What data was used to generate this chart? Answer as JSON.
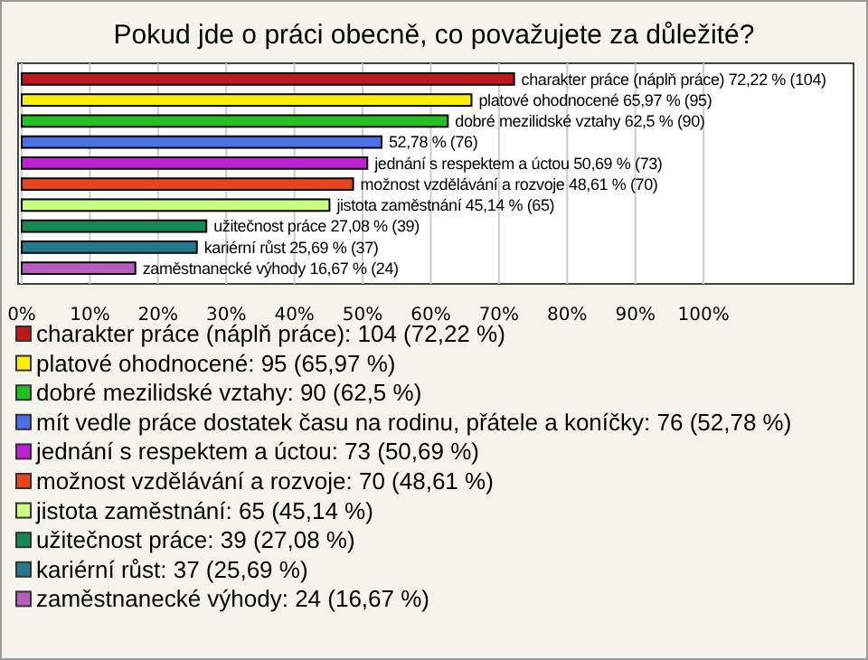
{
  "chart_data": {
    "type": "bar",
    "orientation": "horizontal",
    "title": "Pokud jde o práci obecně, co považujete za důležité?",
    "categories": [
      null,
      null,
      null,
      null,
      null,
      null,
      null,
      null,
      null,
      null
    ],
    "xlim": [
      0,
      122
    ],
    "xticks": [
      {
        "value": 0,
        "label": "0%"
      },
      {
        "value": 10,
        "label": "10%"
      },
      {
        "value": 20,
        "label": "20%"
      },
      {
        "value": 30,
        "label": "30%"
      },
      {
        "value": 40,
        "label": "40%"
      },
      {
        "value": 50,
        "label": "50%"
      },
      {
        "value": 60,
        "label": "60%"
      },
      {
        "value": 70,
        "label": "70%"
      },
      {
        "value": 80,
        "label": "80%"
      },
      {
        "value": 90,
        "label": "90%"
      },
      {
        "value": 100,
        "label": "100%"
      }
    ],
    "grid": "x",
    "legend": "bottom",
    "series": [
      {
        "name": "charakter práce (náplň práce): 104 (72,22 %)",
        "color": "#c0171b",
        "values": [
          72.22,
          null,
          null,
          null,
          null,
          null,
          null,
          null,
          null,
          null
        ],
        "value_labels": [
          "charakter práce (náplň práce) 72,22 % (104)",
          null,
          null,
          null,
          null,
          null,
          null,
          null,
          null,
          null
        ]
      },
      {
        "name": "platové ohodnocené: 95 (65,97 %)",
        "color": "#ffee00",
        "values": [
          null,
          65.97,
          null,
          null,
          null,
          null,
          null,
          null,
          null,
          null
        ],
        "value_labels": [
          null,
          "platové ohodnocené 65,97 % (95)",
          null,
          null,
          null,
          null,
          null,
          null,
          null,
          null
        ]
      },
      {
        "name": "dobré mezilidské vztahy: 90 (62,5 %)",
        "color": "#1fc21f",
        "values": [
          null,
          null,
          62.5,
          null,
          null,
          null,
          null,
          null,
          null,
          null
        ],
        "value_labels": [
          null,
          null,
          "dobré mezilidské vztahy 62,5 % (90)",
          null,
          null,
          null,
          null,
          null,
          null,
          null
        ]
      },
      {
        "name": "mít vedle práce dostatek času na rodinu, přátele a koníčky: 76 (52,78 %)",
        "color": "#4a6fe8",
        "values": [
          null,
          null,
          null,
          52.78,
          null,
          null,
          null,
          null,
          null,
          null
        ],
        "value_labels": [
          null,
          null,
          null,
          "52,78 % (76)",
          null,
          null,
          null,
          null,
          null,
          null
        ]
      },
      {
        "name": "jednání s respektem a úctou: 73 (50,69 %)",
        "color": "#c21fd8",
        "values": [
          null,
          null,
          null,
          null,
          50.69,
          null,
          null,
          null,
          null,
          null
        ],
        "value_labels": [
          null,
          null,
          null,
          null,
          "jednání s respektem a úctou 50,69 % (73)",
          null,
          null,
          null,
          null,
          null
        ]
      },
      {
        "name": "možnost vzdělávání a rozvoje: 70 (48,61 %)",
        "color": "#e8461a",
        "values": [
          null,
          null,
          null,
          null,
          null,
          48.61,
          null,
          null,
          null,
          null
        ],
        "value_labels": [
          null,
          null,
          null,
          null,
          null,
          "možnost vzdělávání a rozvoje 48,61 % (70)",
          null,
          null,
          null,
          null
        ]
      },
      {
        "name": "jistota zaměstnání: 65 (45,14 %)",
        "color": "#ccff80",
        "values": [
          null,
          null,
          null,
          null,
          null,
          null,
          45.14,
          null,
          null,
          null
        ],
        "value_labels": [
          null,
          null,
          null,
          null,
          null,
          null,
          "jistota zaměstnání 45,14 % (65)",
          null,
          null,
          null
        ]
      },
      {
        "name": "užitečnost práce: 39 (27,08 %)",
        "color": "#138a55",
        "values": [
          null,
          null,
          null,
          null,
          null,
          null,
          null,
          27.08,
          null,
          null
        ],
        "value_labels": [
          null,
          null,
          null,
          null,
          null,
          null,
          null,
          "užitečnost práce 27,08 % (39)",
          null,
          null
        ]
      },
      {
        "name": "kariérní růst: 37 (25,69 %)",
        "color": "#1e7a8c",
        "values": [
          null,
          null,
          null,
          null,
          null,
          null,
          null,
          null,
          25.69,
          null
        ],
        "value_labels": [
          null,
          null,
          null,
          null,
          null,
          null,
          null,
          null,
          "kariérní růst 25,69 % (37)",
          null
        ]
      },
      {
        "name": "zaměstnanecké výhody: 24 (16,67 %)",
        "color": "#b85cc0",
        "values": [
          null,
          null,
          null,
          null,
          null,
          null,
          null,
          null,
          null,
          16.67
        ],
        "value_labels": [
          null,
          null,
          null,
          null,
          null,
          null,
          null,
          null,
          null,
          "zaměstnanecké výhody 16,67 % (24)"
        ]
      }
    ]
  }
}
